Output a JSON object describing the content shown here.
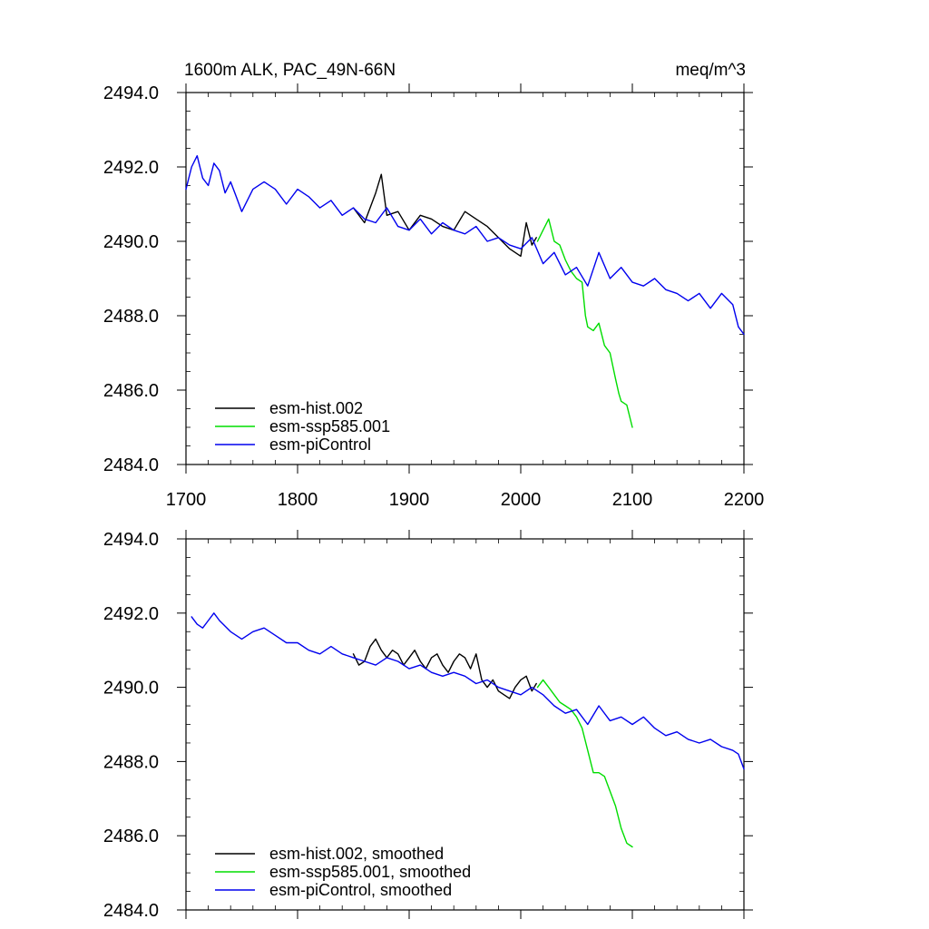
{
  "chart_data": [
    {
      "type": "line",
      "panel": "top",
      "title_left": "1600m ALK, PAC_49N-66N",
      "title_right": "meq/m^3",
      "xlim": [
        1700,
        2200
      ],
      "ylim": [
        2484,
        2494
      ],
      "x_ticks": [
        1700,
        1800,
        1900,
        2000,
        2100,
        2200
      ],
      "x_tick_labels": [
        "1700",
        "1800",
        "1900",
        "2000",
        "2100",
        "2200"
      ],
      "y_ticks": [
        2484,
        2486,
        2488,
        2490,
        2492,
        2494
      ],
      "y_tick_labels": [
        "2484.0",
        "2486.0",
        "2488.0",
        "2490.0",
        "2492.0",
        "2494.0"
      ],
      "legend_location": "lower-left",
      "series": [
        {
          "name": "esm-hist.002",
          "color": "#000000",
          "x": [
            1850,
            1860,
            1870,
            1875,
            1880,
            1890,
            1900,
            1910,
            1920,
            1930,
            1940,
            1950,
            1960,
            1970,
            1980,
            1990,
            2000,
            2005,
            2010,
            2014
          ],
          "values": [
            2490.9,
            2490.5,
            2491.3,
            2491.8,
            2490.7,
            2490.8,
            2490.3,
            2490.7,
            2490.6,
            2490.4,
            2490.3,
            2490.8,
            2490.6,
            2490.4,
            2490.1,
            2489.8,
            2489.6,
            2490.5,
            2489.9,
            2490.1
          ]
        },
        {
          "name": "esm-ssp585.001",
          "color": "#00dd00",
          "x": [
            2015,
            2020,
            2025,
            2030,
            2035,
            2040,
            2045,
            2050,
            2055,
            2058,
            2060,
            2065,
            2070,
            2075,
            2080,
            2085,
            2088,
            2090,
            2095,
            2100
          ],
          "values": [
            2490.0,
            2490.3,
            2490.6,
            2490.0,
            2489.9,
            2489.5,
            2489.2,
            2489.0,
            2488.9,
            2488.0,
            2487.7,
            2487.6,
            2487.8,
            2487.2,
            2487.0,
            2486.3,
            2485.9,
            2485.7,
            2485.6,
            2485.0
          ]
        },
        {
          "name": "esm-piControl",
          "color": "#0000ee",
          "x": [
            1700,
            1705,
            1710,
            1715,
            1720,
            1725,
            1730,
            1735,
            1740,
            1745,
            1750,
            1760,
            1770,
            1780,
            1790,
            1800,
            1810,
            1820,
            1830,
            1840,
            1850,
            1860,
            1870,
            1880,
            1890,
            1900,
            1910,
            1920,
            1930,
            1940,
            1950,
            1960,
            1970,
            1980,
            1990,
            2000,
            2010,
            2020,
            2030,
            2040,
            2050,
            2060,
            2070,
            2080,
            2090,
            2100,
            2110,
            2120,
            2130,
            2140,
            2150,
            2160,
            2170,
            2180,
            2190,
            2195,
            2200
          ],
          "values": [
            2491.4,
            2492.0,
            2492.3,
            2491.7,
            2491.5,
            2492.1,
            2491.9,
            2491.3,
            2491.6,
            2491.2,
            2490.8,
            2491.4,
            2491.6,
            2491.4,
            2491.0,
            2491.4,
            2491.2,
            2490.9,
            2491.1,
            2490.7,
            2490.9,
            2490.6,
            2490.5,
            2490.9,
            2490.4,
            2490.3,
            2490.6,
            2490.2,
            2490.5,
            2490.3,
            2490.2,
            2490.4,
            2490.0,
            2490.1,
            2489.9,
            2489.8,
            2490.1,
            2489.4,
            2489.7,
            2489.1,
            2489.3,
            2488.8,
            2489.7,
            2489.0,
            2489.3,
            2488.9,
            2488.8,
            2489.0,
            2488.7,
            2488.6,
            2488.4,
            2488.6,
            2488.2,
            2488.6,
            2488.3,
            2487.7,
            2487.5
          ]
        }
      ]
    },
    {
      "type": "line",
      "panel": "bottom",
      "xlim": [
        1700,
        2200
      ],
      "ylim": [
        2484,
        2494
      ],
      "x_ticks": [
        1700,
        1800,
        1900,
        2000,
        2100,
        2200
      ],
      "y_ticks": [
        2484,
        2486,
        2488,
        2490,
        2492,
        2494
      ],
      "y_tick_labels": [
        "2484.0",
        "2486.0",
        "2488.0",
        "2490.0",
        "2492.0",
        "2494.0"
      ],
      "legend_location": "lower-left",
      "series": [
        {
          "name": "esm-hist.002, smoothed",
          "color": "#000000",
          "x": [
            1850,
            1855,
            1860,
            1865,
            1870,
            1875,
            1880,
            1885,
            1890,
            1895,
            1900,
            1905,
            1910,
            1915,
            1920,
            1925,
            1930,
            1935,
            1940,
            1945,
            1950,
            1955,
            1960,
            1965,
            1970,
            1975,
            1980,
            1985,
            1990,
            1995,
            2000,
            2005,
            2010,
            2014
          ],
          "values": [
            2490.9,
            2490.6,
            2490.7,
            2491.1,
            2491.3,
            2491.0,
            2490.8,
            2491.0,
            2490.9,
            2490.6,
            2490.8,
            2491.0,
            2490.7,
            2490.5,
            2490.8,
            2490.9,
            2490.6,
            2490.4,
            2490.7,
            2490.9,
            2490.8,
            2490.5,
            2490.9,
            2490.2,
            2490.0,
            2490.2,
            2489.9,
            2489.8,
            2489.7,
            2490.0,
            2490.2,
            2490.3,
            2489.9,
            2490.1
          ]
        },
        {
          "name": "esm-ssp585.001, smoothed",
          "color": "#00dd00",
          "x": [
            2015,
            2020,
            2025,
            2030,
            2035,
            2040,
            2045,
            2050,
            2055,
            2060,
            2065,
            2070,
            2075,
            2080,
            2085,
            2090,
            2095,
            2100
          ],
          "values": [
            2490.0,
            2490.2,
            2490.0,
            2489.8,
            2489.6,
            2489.5,
            2489.4,
            2489.2,
            2488.9,
            2488.3,
            2487.7,
            2487.7,
            2487.6,
            2487.2,
            2486.8,
            2486.2,
            2485.8,
            2485.7
          ]
        },
        {
          "name": "esm-piControl, smoothed",
          "color": "#0000ee",
          "x": [
            1705,
            1710,
            1715,
            1720,
            1725,
            1730,
            1740,
            1750,
            1760,
            1770,
            1780,
            1790,
            1800,
            1810,
            1820,
            1830,
            1840,
            1850,
            1860,
            1870,
            1880,
            1890,
            1900,
            1910,
            1920,
            1930,
            1940,
            1950,
            1960,
            1970,
            1980,
            1990,
            2000,
            2010,
            2020,
            2030,
            2040,
            2050,
            2060,
            2070,
            2080,
            2090,
            2100,
            2110,
            2120,
            2130,
            2140,
            2150,
            2160,
            2170,
            2180,
            2190,
            2195,
            2200
          ],
          "values": [
            2491.9,
            2491.7,
            2491.6,
            2491.8,
            2492.0,
            2491.8,
            2491.5,
            2491.3,
            2491.5,
            2491.6,
            2491.4,
            2491.2,
            2491.2,
            2491.0,
            2490.9,
            2491.1,
            2490.9,
            2490.8,
            2490.7,
            2490.6,
            2490.8,
            2490.7,
            2490.5,
            2490.6,
            2490.4,
            2490.3,
            2490.4,
            2490.3,
            2490.1,
            2490.2,
            2490.0,
            2489.9,
            2489.8,
            2490.0,
            2489.8,
            2489.5,
            2489.3,
            2489.4,
            2489.0,
            2489.5,
            2489.1,
            2489.2,
            2489.0,
            2489.2,
            2488.9,
            2488.7,
            2488.8,
            2488.6,
            2488.5,
            2488.6,
            2488.4,
            2488.3,
            2488.2,
            2487.8
          ]
        }
      ]
    }
  ]
}
